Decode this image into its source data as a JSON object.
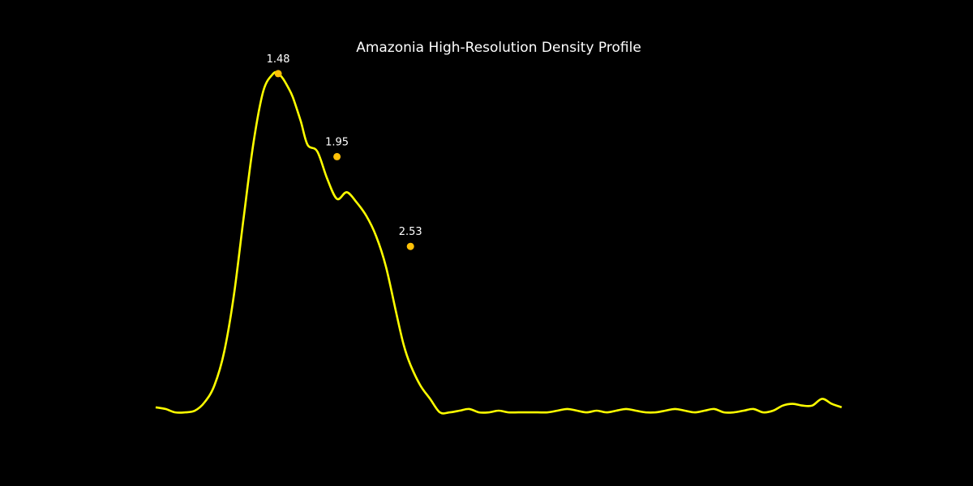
{
  "chart_data": {
    "type": "line",
    "title": "Amazonia High-Resolution Density Profile",
    "xlabel": "",
    "ylabel": "",
    "axes_visible": false,
    "grid": false,
    "xlim": [
      0.0,
      7.0
    ],
    "ylim": [
      -0.05,
      1.05
    ],
    "line_color": "#ffff00",
    "marker_color": "#ffc107",
    "background": "#000000",
    "series": [
      {
        "x": [
          0.0,
          0.1,
          0.2,
          0.3,
          0.4,
          0.5,
          0.6,
          0.7,
          0.8,
          0.9,
          1.0,
          1.1,
          1.2,
          1.25,
          1.3,
          1.35,
          1.4,
          1.48,
          1.55,
          1.65,
          1.75,
          1.85,
          1.95,
          2.05,
          2.15,
          2.25,
          2.35,
          2.45,
          2.53,
          2.6,
          2.7,
          2.8,
          2.9,
          3.0,
          3.1,
          3.2,
          3.3,
          3.4,
          3.5,
          3.6,
          3.7,
          3.8,
          3.9,
          4.0,
          4.1,
          4.2,
          4.3,
          4.4,
          4.5,
          4.6,
          4.7,
          4.8,
          4.9,
          5.0,
          5.1,
          5.2,
          5.3,
          5.4,
          5.5,
          5.6,
          5.7,
          5.8,
          5.9,
          6.0,
          6.1,
          6.2,
          6.3,
          6.4,
          6.5,
          6.6,
          6.7,
          6.8,
          6.9,
          7.0
        ],
        "y": [
          0.015,
          0.01,
          0.0,
          0.0,
          0.005,
          0.03,
          0.08,
          0.18,
          0.35,
          0.58,
          0.8,
          0.95,
          1.0,
          1.0,
          0.985,
          0.96,
          0.93,
          0.86,
          0.79,
          0.77,
          0.69,
          0.63,
          0.65,
          0.62,
          0.58,
          0.52,
          0.43,
          0.3,
          0.2,
          0.14,
          0.08,
          0.04,
          0.0,
          0.0,
          0.005,
          0.01,
          0.0,
          0.0,
          0.005,
          0.0,
          0.0,
          0.0,
          0.0,
          0.0,
          0.005,
          0.01,
          0.005,
          0.0,
          0.005,
          0.0,
          0.005,
          0.01,
          0.005,
          0.0,
          0.0,
          0.005,
          0.01,
          0.005,
          0.0,
          0.005,
          0.01,
          0.0,
          0.0,
          0.005,
          0.01,
          0.0,
          0.005,
          0.02,
          0.025,
          0.02,
          0.02,
          0.04,
          0.025,
          0.015
        ]
      }
    ],
    "peaks": [
      {
        "x": 1.25,
        "y": 1.0,
        "label": "1.48"
      },
      {
        "x": 1.85,
        "y": 0.755,
        "label": "1.95"
      },
      {
        "x": 2.6,
        "y": 0.49,
        "label": "2.53"
      }
    ]
  }
}
